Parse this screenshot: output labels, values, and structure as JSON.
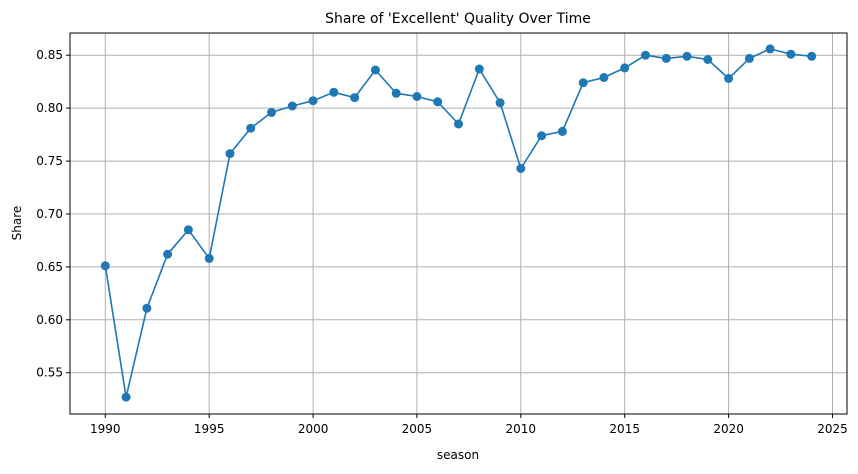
{
  "chart_data": {
    "type": "line",
    "title": "Share of 'Excellent' Quality Over Time",
    "xlabel": "season",
    "ylabel": "Share",
    "xlim": [
      1988.3,
      2025.7
    ],
    "ylim": [
      0.511,
      0.871
    ],
    "xticks": [
      1990,
      1995,
      2000,
      2005,
      2010,
      2015,
      2020,
      2025
    ],
    "xtick_labels": [
      "1990",
      "1995",
      "2000",
      "2005",
      "2010",
      "2015",
      "2020",
      "2025"
    ],
    "yticks": [
      0.55,
      0.6,
      0.65,
      0.7,
      0.75,
      0.8,
      0.85
    ],
    "ytick_labels": [
      "0.55",
      "0.60",
      "0.65",
      "0.70",
      "0.75",
      "0.80",
      "0.85"
    ],
    "grid": true,
    "marker": "circle",
    "series": [
      {
        "color": "#1f77b4",
        "x": [
          1990,
          1991,
          1992,
          1993,
          1994,
          1995,
          1996,
          1997,
          1998,
          1999,
          2000,
          2001,
          2002,
          2003,
          2004,
          2005,
          2006,
          2007,
          2008,
          2009,
          2010,
          2011,
          2012,
          2013,
          2014,
          2015,
          2016,
          2017,
          2018,
          2019,
          2020,
          2021,
          2022,
          2023,
          2024
        ],
        "y": [
          0.651,
          0.527,
          0.611,
          0.662,
          0.685,
          0.658,
          0.757,
          0.781,
          0.796,
          0.802,
          0.807,
          0.815,
          0.81,
          0.836,
          0.814,
          0.811,
          0.806,
          0.785,
          0.837,
          0.805,
          0.743,
          0.774,
          0.778,
          0.824,
          0.829,
          0.838,
          0.85,
          0.847,
          0.849,
          0.846,
          0.828,
          0.847,
          0.856,
          0.851,
          0.849
        ]
      }
    ]
  }
}
